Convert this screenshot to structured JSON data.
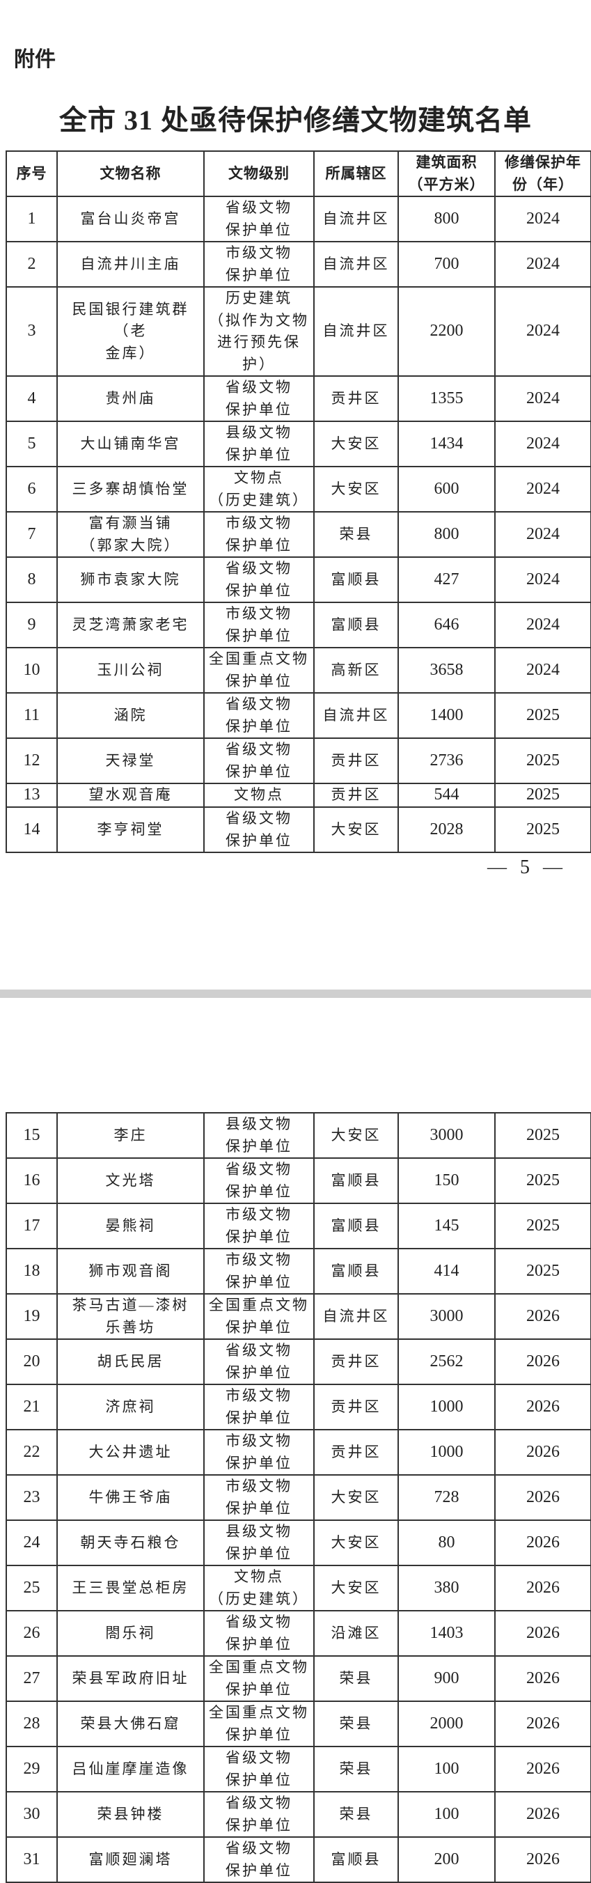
{
  "attachment_label": "附件",
  "title": "全市 31 处亟待保护修缮文物建筑名单",
  "headers": [
    "序号",
    "文物名称",
    "文物级别",
    "所属辖区",
    "建筑面积\n（平方米）",
    "修缮保护年\n份（年）"
  ],
  "page_number": "— 5 —",
  "page1_rows": [
    {
      "no": "1",
      "name": "富台山炎帝宫",
      "level": "省级文物\n保护单位",
      "district": "自流井区",
      "area": "800",
      "year": "2024"
    },
    {
      "no": "2",
      "name": "自流井川主庙",
      "level": "市级文物\n保护单位",
      "district": "自流井区",
      "area": "700",
      "year": "2024"
    },
    {
      "no": "3",
      "name": "民国银行建筑群（老\n金库）",
      "level": "历史建筑\n（拟作为文物\n进行预先保\n护）",
      "district": "自流井区",
      "area": "2200",
      "year": "2024"
    },
    {
      "no": "4",
      "name": "贵州庙",
      "level": "省级文物\n保护单位",
      "district": "贡井区",
      "area": "1355",
      "year": "2024"
    },
    {
      "no": "5",
      "name": "大山铺南华宫",
      "level": "县级文物\n保护单位",
      "district": "大安区",
      "area": "1434",
      "year": "2024"
    },
    {
      "no": "6",
      "name": "三多寨胡慎怡堂",
      "level": "文物点\n（历史建筑）",
      "district": "大安区",
      "area": "600",
      "year": "2024"
    },
    {
      "no": "7",
      "name": "富有灏当铺\n（郭家大院）",
      "level": "市级文物\n保护单位",
      "district": "荣县",
      "area": "800",
      "year": "2024"
    },
    {
      "no": "8",
      "name": "狮市袁家大院",
      "level": "省级文物\n保护单位",
      "district": "富顺县",
      "area": "427",
      "year": "2024"
    },
    {
      "no": "9",
      "name": "灵芝湾萧家老宅",
      "level": "市级文物\n保护单位",
      "district": "富顺县",
      "area": "646",
      "year": "2024"
    },
    {
      "no": "10",
      "name": "玉川公祠",
      "level": "全国重点文物\n保护单位",
      "district": "高新区",
      "area": "3658",
      "year": "2024"
    },
    {
      "no": "11",
      "name": "涵院",
      "level": "省级文物\n保护单位",
      "district": "自流井区",
      "area": "1400",
      "year": "2025"
    },
    {
      "no": "12",
      "name": "天禄堂",
      "level": "省级文物\n保护单位",
      "district": "贡井区",
      "area": "2736",
      "year": "2025"
    },
    {
      "no": "13",
      "name": "望水观音庵",
      "level": "文物点",
      "district": "贡井区",
      "area": "544",
      "year": "2025"
    },
    {
      "no": "14",
      "name": "李亨祠堂",
      "level": "省级文物\n保护单位",
      "district": "大安区",
      "area": "2028",
      "year": "2025"
    }
  ],
  "page2_rows": [
    {
      "no": "15",
      "name": "李庄",
      "level": "县级文物\n保护单位",
      "district": "大安区",
      "area": "3000",
      "year": "2025"
    },
    {
      "no": "16",
      "name": "文光塔",
      "level": "省级文物\n保护单位",
      "district": "富顺县",
      "area": "150",
      "year": "2025"
    },
    {
      "no": "17",
      "name": "晏熊祠",
      "level": "市级文物\n保护单位",
      "district": "富顺县",
      "area": "145",
      "year": "2025"
    },
    {
      "no": "18",
      "name": "狮市观音阁",
      "level": "市级文物\n保护单位",
      "district": "富顺县",
      "area": "414",
      "year": "2025"
    },
    {
      "no": "19",
      "name": "茶马古道—漆树\n乐善坊",
      "level": "全国重点文物\n保护单位",
      "district": "自流井区",
      "area": "3000",
      "year": "2026"
    },
    {
      "no": "20",
      "name": "胡氏民居",
      "level": "省级文物\n保护单位",
      "district": "贡井区",
      "area": "2562",
      "year": "2026"
    },
    {
      "no": "21",
      "name": "济庶祠",
      "level": "市级文物\n保护单位",
      "district": "贡井区",
      "area": "1000",
      "year": "2026"
    },
    {
      "no": "22",
      "name": "大公井遗址",
      "level": "市级文物\n保护单位",
      "district": "贡井区",
      "area": "1000",
      "year": "2026"
    },
    {
      "no": "23",
      "name": "牛佛王爷庙",
      "level": "市级文物\n保护单位",
      "district": "大安区",
      "area": "728",
      "year": "2026"
    },
    {
      "no": "24",
      "name": "朝天寺石粮仓",
      "level": "县级文物\n保护单位",
      "district": "大安区",
      "area": "80",
      "year": "2026"
    },
    {
      "no": "25",
      "name": "王三畏堂总柜房",
      "level": "文物点\n（历史建筑）",
      "district": "大安区",
      "area": "380",
      "year": "2026"
    },
    {
      "no": "26",
      "name": "閤乐祠",
      "level": "省级文物\n保护单位",
      "district": "沿滩区",
      "area": "1403",
      "year": "2026"
    },
    {
      "no": "27",
      "name": "荣县军政府旧址",
      "level": "全国重点文物\n保护单位",
      "district": "荣县",
      "area": "900",
      "year": "2026"
    },
    {
      "no": "28",
      "name": "荣县大佛石窟",
      "level": "全国重点文物\n保护单位",
      "district": "荣县",
      "area": "2000",
      "year": "2026"
    },
    {
      "no": "29",
      "name": "吕仙崖摩崖造像",
      "level": "省级文物\n保护单位",
      "district": "荣县",
      "area": "100",
      "year": "2026"
    },
    {
      "no": "30",
      "name": "荣县钟楼",
      "level": "省级文物\n保护单位",
      "district": "荣县",
      "area": "100",
      "year": "2026"
    },
    {
      "no": "31",
      "name": "富顺廻澜塔",
      "level": "省级文物\n保护单位",
      "district": "富顺县",
      "area": "200",
      "year": "2026"
    }
  ]
}
